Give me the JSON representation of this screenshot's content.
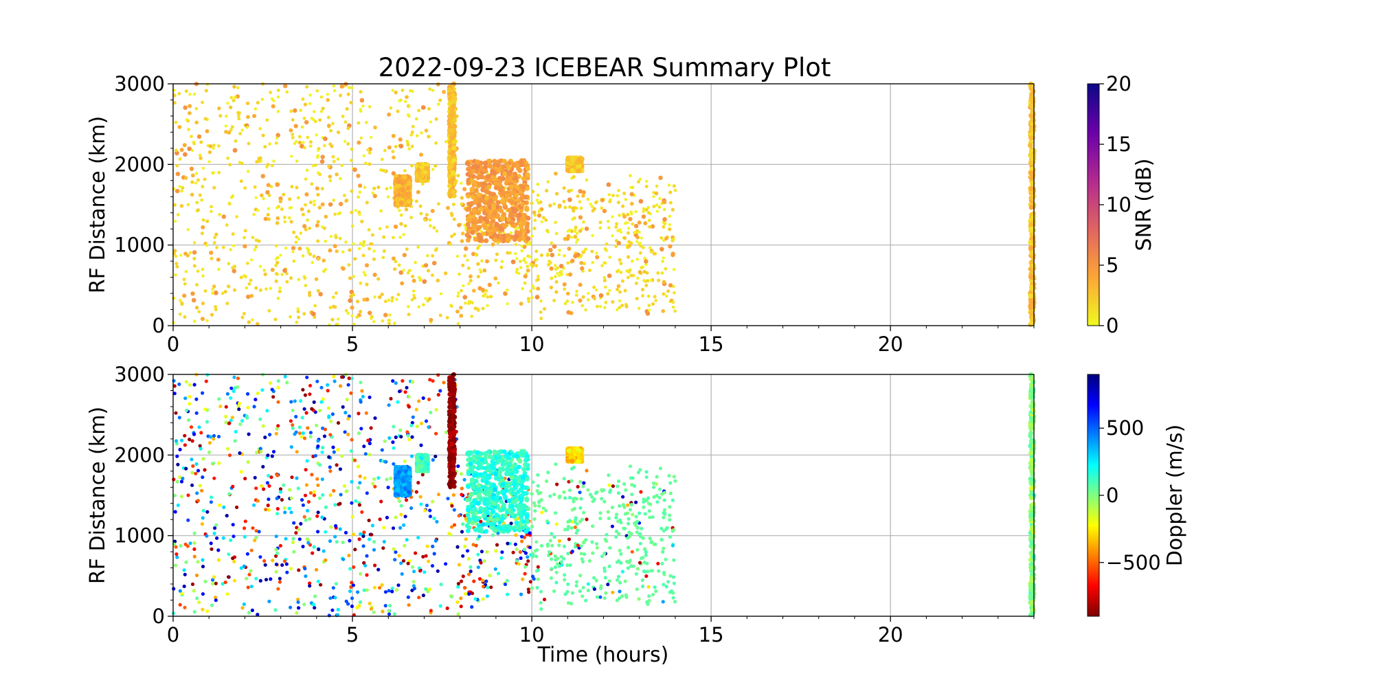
{
  "chart_data": [
    {
      "type": "scatter",
      "title": "2022-09-23 ICEBEAR Summary Plot",
      "xlabel": "",
      "ylabel": "RF Distance (km)",
      "xlim": [
        0,
        24
      ],
      "ylim": [
        0,
        3000
      ],
      "xticks": [
        0,
        5,
        10,
        15,
        20
      ],
      "xtick_labels": [
        "0",
        "5",
        "10",
        "15",
        "20"
      ],
      "yticks": [
        0,
        1000,
        2000,
        3000
      ],
      "ytick_labels": [
        "0",
        "1000",
        "2000",
        "3000"
      ],
      "grid": true,
      "color_variable": "SNR",
      "colorbar": {
        "label": "SNR (dB)",
        "range": [
          0,
          20
        ],
        "ticks": [
          0,
          5,
          10,
          15,
          20
        ],
        "tick_labels": [
          "0",
          "5",
          "10",
          "15",
          "20"
        ],
        "colormap": "plasma_r",
        "colors": [
          "#f0f921",
          "#fca636",
          "#e16462",
          "#b12a90",
          "#6a00a8",
          "#0d0887"
        ]
      },
      "scattered_points": {
        "time_range_hours": [
          0,
          14
        ],
        "distance_range_km": [
          0,
          3000
        ],
        "approx_count": 1400,
        "typical_snr_db": [
          0,
          5
        ]
      },
      "clusters": [
        {
          "x_hours": [
            7.7,
            7.85
          ],
          "y_km": [
            1600,
            3000
          ],
          "snr_db": 1,
          "doppler_ms": -850
        },
        {
          "x_hours": [
            6.2,
            6.6
          ],
          "y_km": [
            1500,
            1850
          ],
          "snr_db": 2,
          "doppler_ms": 400
        },
        {
          "x_hours": [
            6.8,
            7.1
          ],
          "y_km": [
            1800,
            2000
          ],
          "snr_db": 1,
          "doppler_ms": 100
        },
        {
          "x_hours": [
            8.2,
            9.9
          ],
          "y_km": [
            1050,
            2050
          ],
          "snr_db": 3,
          "doppler_ms": 150
        },
        {
          "x_hours": [
            11.0,
            11.4
          ],
          "y_km": [
            1920,
            2080
          ],
          "snr_db": 1,
          "doppler_ms": -300
        },
        {
          "x_hours": [
            23.9,
            24.0
          ],
          "y_km": [
            0,
            3000
          ],
          "snr_db": 1,
          "doppler_ms": 0
        }
      ]
    },
    {
      "type": "scatter",
      "title": "",
      "xlabel": "Time (hours)",
      "ylabel": "RF Distance (km)",
      "xlim": [
        0,
        24
      ],
      "ylim": [
        0,
        3000
      ],
      "xticks": [
        0,
        5,
        10,
        15,
        20
      ],
      "xtick_labels": [
        "0",
        "5",
        "10",
        "15",
        "20"
      ],
      "yticks": [
        0,
        1000,
        2000,
        3000
      ],
      "ytick_labels": [
        "0",
        "1000",
        "2000",
        "3000"
      ],
      "grid": true,
      "color_variable": "Doppler",
      "colorbar": {
        "label": "Doppler (m/s)",
        "range": [
          -900,
          900
        ],
        "ticks": [
          -500,
          0,
          500
        ],
        "tick_labels": [
          "−500",
          "0",
          "500"
        ],
        "colormap": "jet_r",
        "colors": [
          "#7f0000",
          "#ff0000",
          "#ff8000",
          "#ffff00",
          "#80ff80",
          "#00ffff",
          "#0080ff",
          "#0000ff",
          "#00007f"
        ]
      },
      "scattered_points": {
        "time_range_hours": [
          0,
          14
        ],
        "distance_range_km": [
          0,
          3000
        ],
        "approx_count": 1400,
        "doppler_ms_range": [
          -900,
          900
        ],
        "late_points_doppler_ms": 30
      }
    }
  ]
}
